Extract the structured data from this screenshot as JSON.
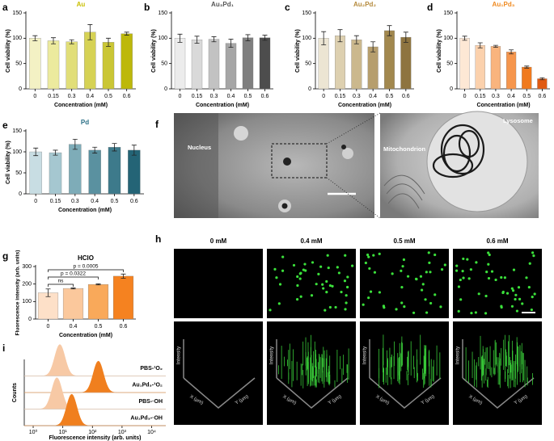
{
  "chart_data": [
    {
      "panel": "a",
      "type": "bar",
      "title": "Au",
      "title_color": "#c9bf00",
      "xlabel": "Concentration (mM)",
      "ylabel": "Cell viability (%)",
      "categories": [
        "0",
        "0.15",
        "0.3",
        "0.4",
        "0.5",
        "0.6"
      ],
      "values": [
        100,
        95,
        93,
        112,
        92,
        109
      ],
      "errors": [
        5,
        6,
        4,
        15,
        8,
        3
      ],
      "colors": [
        "#f3f1c4",
        "#ecea9e",
        "#e1de78",
        "#d6d255",
        "#cac635",
        "#bdb80a"
      ],
      "ylim": [
        0,
        150
      ],
      "yticks": [
        0,
        50,
        100,
        150
      ]
    },
    {
      "panel": "b",
      "type": "bar",
      "title": "Au₃Pd₁",
      "title_color": "#555555",
      "xlabel": "Concentration (mM)",
      "ylabel": "Cell viability (%)",
      "categories": [
        "0",
        "0.15",
        "0.3",
        "0.4",
        "0.5",
        "0.6"
      ],
      "values": [
        100,
        97,
        98,
        90,
        101,
        101
      ],
      "errors": [
        8,
        7,
        5,
        8,
        6,
        5
      ],
      "colors": [
        "#ececec",
        "#d9d9d9",
        "#c2c2c2",
        "#a6a6a6",
        "#7f7f7f",
        "#4d4d4d"
      ],
      "ylim": [
        0,
        150
      ],
      "yticks": [
        0,
        50,
        100,
        150
      ]
    },
    {
      "panel": "c",
      "type": "bar",
      "title": "Au₂Pd₂",
      "title_color": "#b58a3c",
      "xlabel": "Concentration (mM)",
      "ylabel": "Cell viability (%)",
      "categories": [
        "0",
        "0.15",
        "0.3",
        "0.4",
        "0.5",
        "0.6"
      ],
      "values": [
        100,
        105,
        97,
        83,
        115,
        102
      ],
      "errors": [
        13,
        12,
        8,
        10,
        10,
        10
      ],
      "colors": [
        "#ece5d3",
        "#ddd0b0",
        "#cbb88d",
        "#b69e6d",
        "#a2884e",
        "#8e7440"
      ],
      "ylim": [
        0,
        150
      ],
      "yticks": [
        0,
        50,
        100,
        150
      ]
    },
    {
      "panel": "d",
      "type": "bar",
      "title": "Au₁Pd₃",
      "title_color": "#f08a20",
      "xlabel": "Concentration (mM)",
      "ylabel": "Cell viability (%)",
      "categories": [
        "0",
        "0.15",
        "0.3",
        "0.4",
        "0.5",
        "0.6"
      ],
      "values": [
        100,
        86,
        84,
        73,
        43,
        20
      ],
      "errors": [
        4,
        5,
        2,
        4,
        2,
        2
      ],
      "colors": [
        "#fde8d5",
        "#fbd1ad",
        "#f9b47d",
        "#f6964d",
        "#f07a1e",
        "#e05a12"
      ],
      "ylim": [
        0,
        150
      ],
      "yticks": [
        0,
        50,
        100,
        150
      ]
    },
    {
      "panel": "e",
      "type": "bar",
      "title": "Pd",
      "title_color": "#2a6f86",
      "xlabel": "Concentration (mM)",
      "ylabel": "Cell viability (%)",
      "categories": [
        "0",
        "0.15",
        "0.3",
        "0.4",
        "0.5",
        "0.6"
      ],
      "values": [
        100,
        98,
        118,
        104,
        111,
        104
      ],
      "errors": [
        9,
        6,
        12,
        7,
        9,
        12
      ],
      "colors": [
        "#c8dde3",
        "#a5c7d0",
        "#7eacb8",
        "#5a91a0",
        "#3d7a8b",
        "#246476"
      ],
      "ylim": [
        0,
        150
      ],
      "yticks": [
        0,
        50,
        100,
        150
      ]
    },
    {
      "panel": "g",
      "type": "bar",
      "title": "HClO",
      "title_color": "#000000",
      "xlabel": "Concentration (mM)",
      "ylabel": "Fluorescence intensity (arb. units)",
      "categories": [
        "0",
        "0.4",
        "0.5",
        "0.6"
      ],
      "values": [
        150,
        175,
        198,
        245
      ],
      "errors": [
        22,
        3,
        3,
        12
      ],
      "colors": [
        "#fde0c8",
        "#fbc89c",
        "#f9a95a",
        "#f58220"
      ],
      "ylim": [
        0,
        300
      ],
      "yticks": [
        0,
        100,
        200,
        300
      ],
      "annotations": [
        "ns",
        "p = 0.0322",
        "p = 0.0005"
      ]
    },
    {
      "panel": "i",
      "type": "density",
      "xlabel": "Fluorescence intensity (arb. units)",
      "ylabel": "Counts",
      "log_x": true,
      "xlim": [
        0.5,
        30000
      ],
      "xticks": [
        {
          "value": 1,
          "label": "10⁰"
        },
        {
          "value": 10,
          "label": "10¹"
        },
        {
          "value": 100,
          "label": "10²"
        },
        {
          "value": 1000,
          "label": "10³"
        },
        {
          "value": 10000,
          "label": "10⁴"
        }
      ],
      "series": [
        {
          "name": "PBS-¹O₂",
          "color": "#f7c9a5"
        },
        {
          "name": "Au₁Pd₃-¹O₂",
          "color": "#f07f1e"
        },
        {
          "name": "PBS-·OH",
          "color": "#f7c9a5"
        },
        {
          "name": "Au₁Pd₃-·OH",
          "color": "#f07f1e"
        }
      ]
    }
  ],
  "micrograph": {
    "panel": "f",
    "labels": [
      "Nucleus",
      "Mitochondrion",
      "Lysosome"
    ]
  },
  "fluorescence": {
    "panel": "h",
    "columns": [
      "0 mM",
      "0.4 mM",
      "0.5 mM",
      "0.6 mM"
    ],
    "axis_labels": [
      "Intensity",
      "X (μm)",
      "Y (μm)"
    ]
  }
}
